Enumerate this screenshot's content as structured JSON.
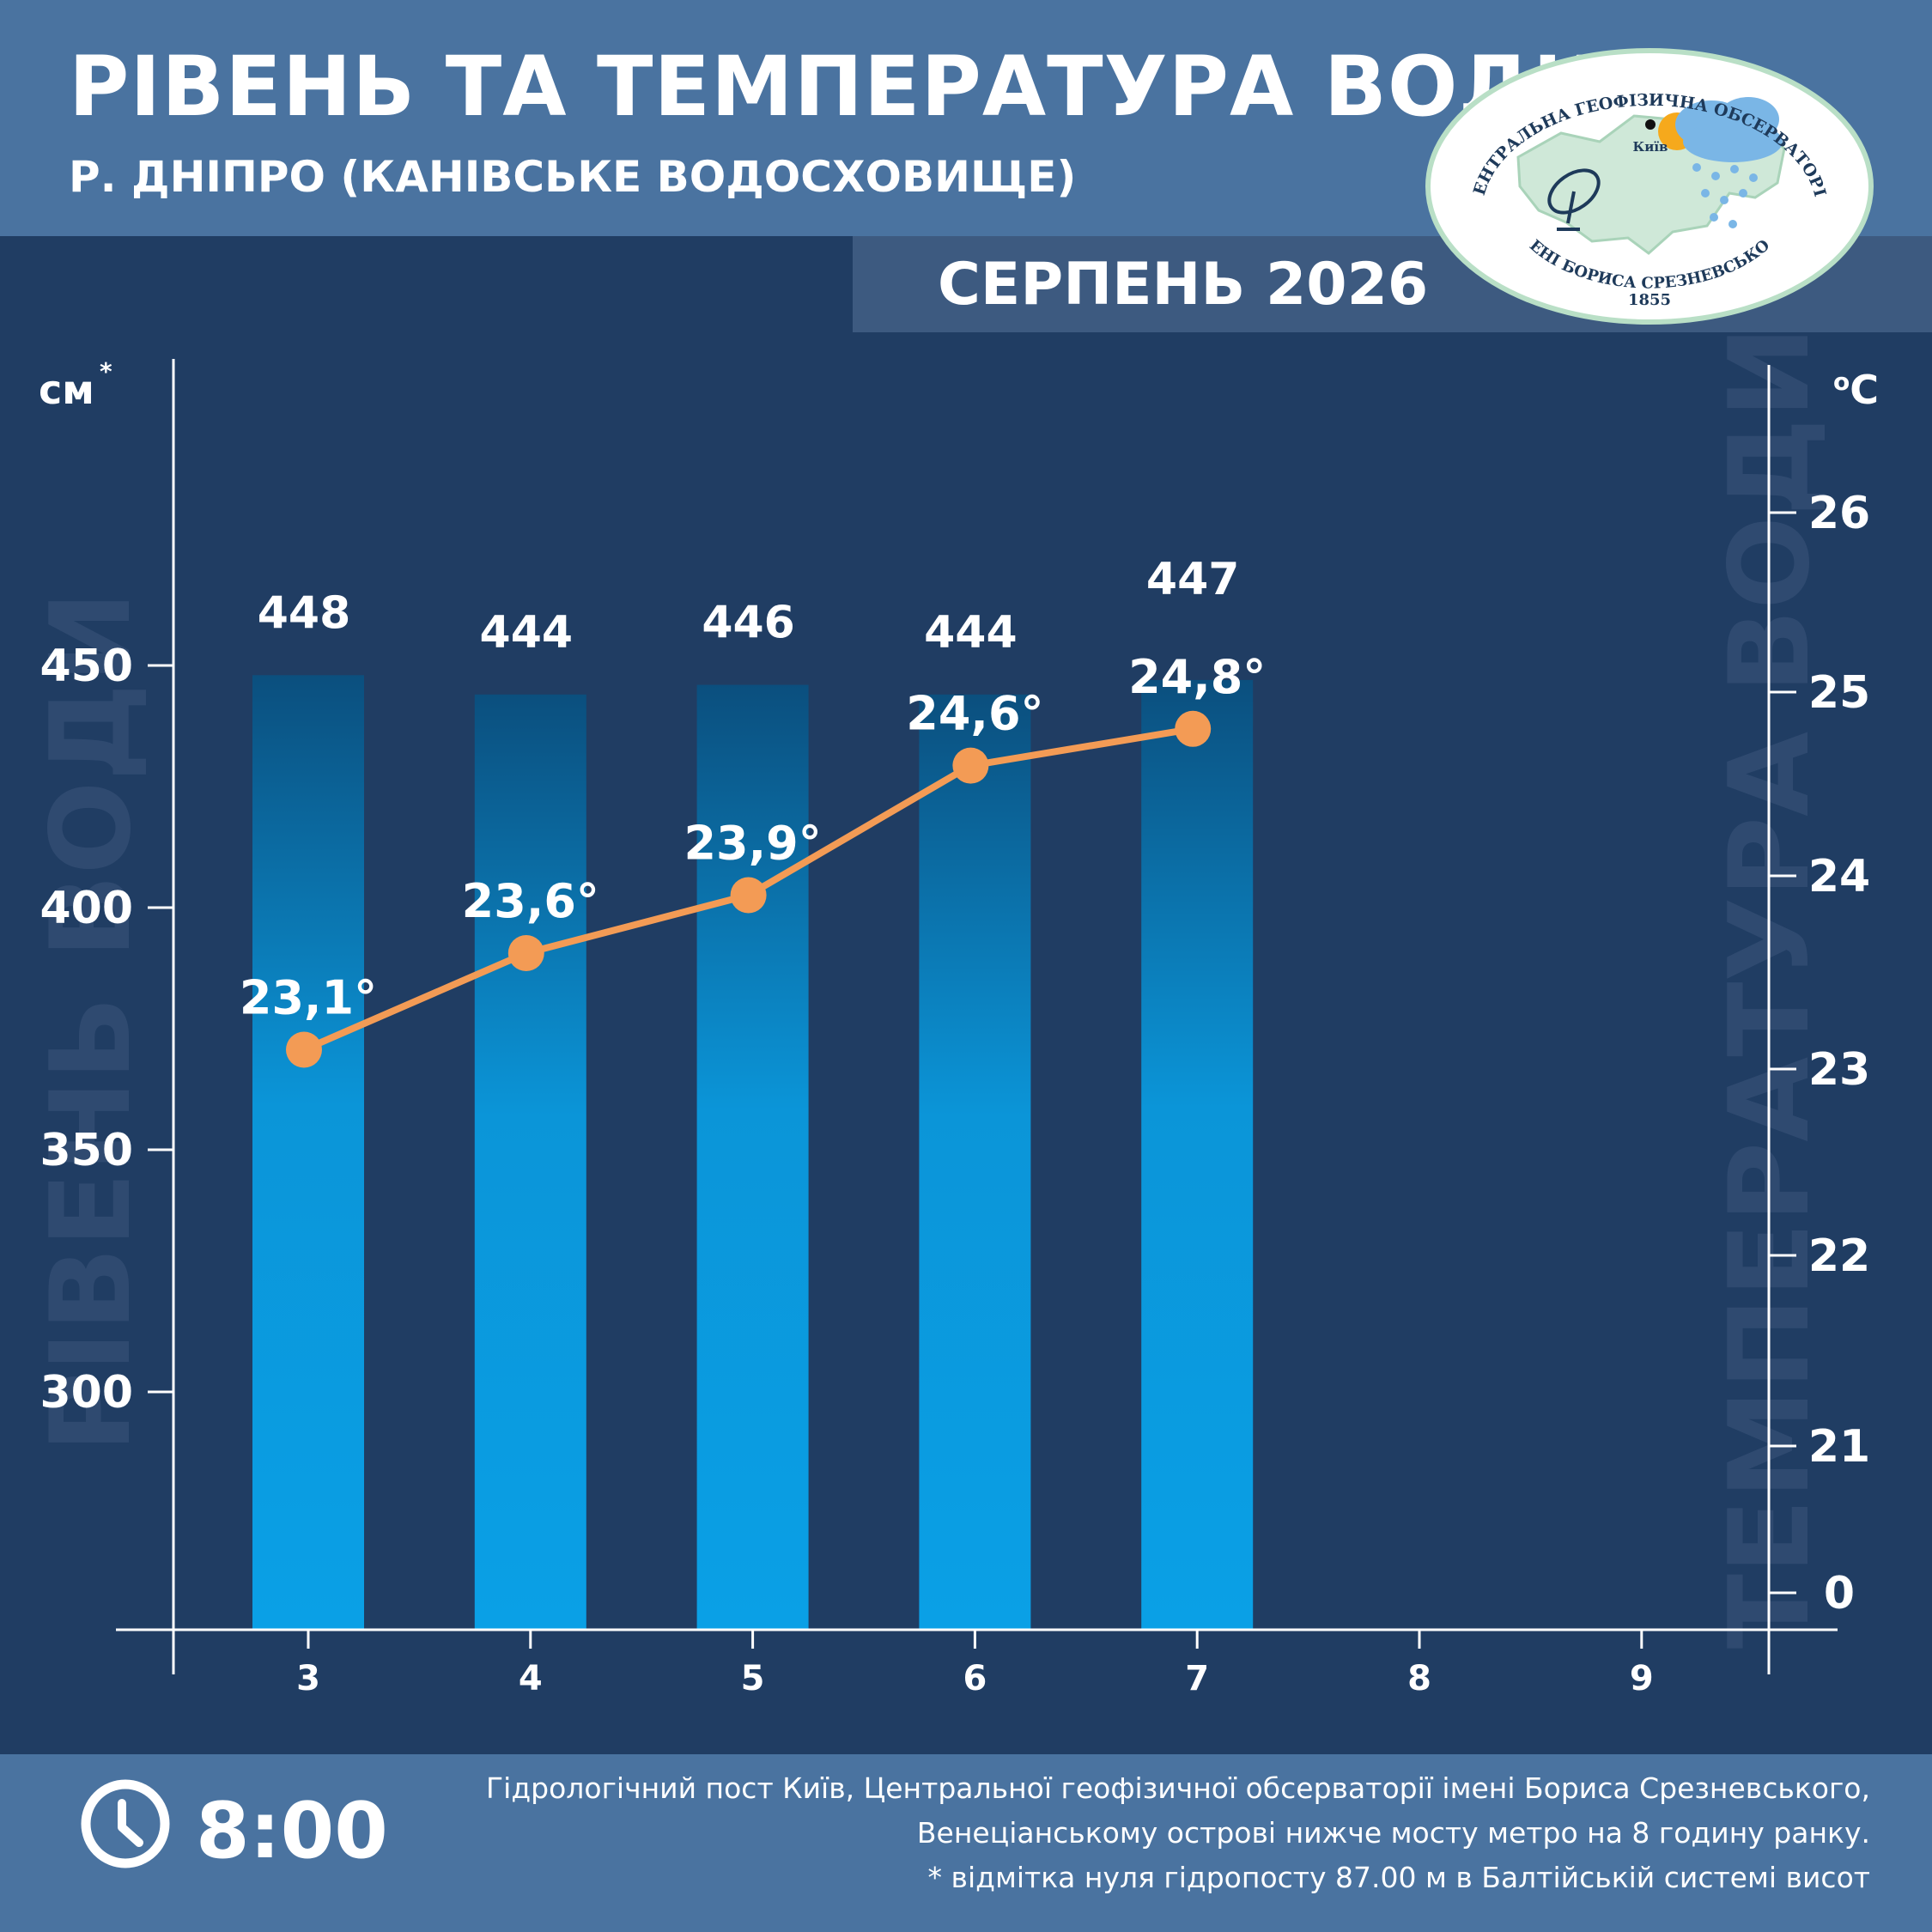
{
  "header": {
    "title": "РІВЕНЬ ТА ТЕМПЕРАТУРА ВОДИ",
    "subtitle": "Р. ДНІПРО (КАНІВСЬКЕ ВОДОСХОВИЩЕ)",
    "month": "СЕРПЕНЬ 2026"
  },
  "logo": {
    "top_text": "ЦЕНТРАЛЬНА ГЕОФІЗИЧНА ОБСЕРВАТОРІЯ",
    "bottom_text": "ІМЕНІ БОРИСА СРЕЗНЕВСЬКОГО",
    "year": "1855",
    "city": "Київ"
  },
  "chart_data": {
    "type": "bar",
    "categories": [
      "3",
      "4",
      "5",
      "6",
      "7",
      "8",
      "9"
    ],
    "series": [
      {
        "type": "bar",
        "axis": "left",
        "values": [
          448,
          444,
          446,
          444,
          447,
          null,
          null
        ],
        "labels": [
          "448",
          "444",
          "446",
          "444",
          "447",
          "",
          ""
        ]
      },
      {
        "type": "line",
        "axis": "right",
        "values": [
          23.1,
          23.6,
          23.9,
          24.6,
          24.8,
          null,
          null
        ],
        "labels": [
          "23,1°",
          "23,6°",
          "23,9°",
          "24,6°",
          "24,8°",
          "",
          ""
        ]
      }
    ],
    "left_axis": {
      "unit": "см",
      "unit_mark": "*",
      "ticks": [
        "300",
        "350",
        "400",
        "450"
      ],
      "watermark": "РІВЕНЬ ВОДИ"
    },
    "right_axis": {
      "unit": "oC",
      "ticks": [
        "0",
        "21",
        "22",
        "23",
        "24",
        "25",
        "26"
      ],
      "watermark": "ТЕМПЕРАТУРА ВОДИ"
    },
    "colors": {
      "bar_top": "#0b4f7e",
      "bar_bottom": "#0aa0e6",
      "line": "#f39b55",
      "background": "#203d63"
    }
  },
  "footer": {
    "time": "8:00",
    "note_lines": [
      "Гідрологічний пост Київ, Центральної геофізичної обсерваторії імені Бориса Срезневського,",
      "Венеціанському острові нижче мосту метро  на 8 годину ранку.",
      "* відмітка нуля гідропосту 87.00 м в Балтійській системі висот"
    ]
  }
}
